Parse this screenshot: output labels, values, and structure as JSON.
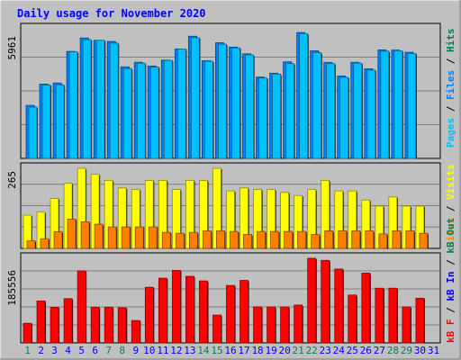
{
  "chart_data": {
    "type": "bar",
    "title": "Daily usage for November 2020",
    "days": [
      "1",
      "2",
      "3",
      "4",
      "5",
      "6",
      "7",
      "8",
      "9",
      "10",
      "11",
      "12",
      "13",
      "14",
      "15",
      "16",
      "17",
      "18",
      "19",
      "20",
      "21",
      "22",
      "23",
      "24",
      "25",
      "26",
      "27",
      "28",
      "29",
      "30",
      "31"
    ],
    "weekend_days": [
      "1",
      "7",
      "8",
      "14",
      "15",
      "21",
      "22",
      "28",
      "29"
    ],
    "panels": [
      {
        "id": "pages-files-hits",
        "max_label": "5961",
        "max": 5961,
        "series": [
          {
            "name": "Hits",
            "color": "#00805c",
            "values": []
          },
          {
            "name": "Files",
            "color": "#0080ff",
            "values": [
              2440,
              3420,
              3470,
              4920,
              5540,
              5430,
              5380,
              4210,
              4420,
              4250,
              4520,
              5030,
              5620,
              4490,
              5320,
              5120,
              4810,
              3740,
              3920,
              4440,
              5790,
              4950,
              4420,
              3790,
              4420,
              4120,
              4990,
              4980,
              4880,
              null,
              null
            ]
          },
          {
            "name": "Pages",
            "color": "#00c0ff",
            "values": [
              2360,
              3380,
              3380,
              4900,
              5460,
              5430,
              5300,
              4130,
              4380,
              4200,
              4510,
              5030,
              5550,
              4470,
              5250,
              5080,
              4760,
              3700,
              3880,
              4360,
              5740,
              4860,
              4360,
              3730,
              4380,
              4060,
              4930,
              4950,
              4830,
              null,
              null
            ]
          }
        ]
      },
      {
        "id": "visits-sites",
        "max_label": "265",
        "max": 265,
        "series": [
          {
            "name": "Visits",
            "color": "#ffff00",
            "values": [
              110,
              120,
              165,
              215,
              265,
              245,
              225,
              200,
              195,
              225,
              225,
              195,
              225,
              225,
              265,
              190,
              200,
              195,
              195,
              185,
              175,
              195,
              225,
              190,
              190,
              160,
              140,
              170,
              140,
              140,
              null
            ]
          },
          {
            "name": "Sites",
            "color": "#ff8000",
            "values": [
              25,
              32,
              55,
              97,
              88,
              80,
              71,
              71,
              71,
              71,
              53,
              50,
              53,
              58,
              58,
              56,
              46,
              56,
              56,
              56,
              56,
              46,
              58,
              58,
              58,
              58,
              48,
              58,
              58,
              50,
              null
            ]
          }
        ]
      },
      {
        "id": "kb-in-out-f",
        "max_label": "185556",
        "max": 185556,
        "series": [
          {
            "name": "KB Out",
            "color": "#00805c",
            "values": []
          },
          {
            "name": "KB In",
            "color": "#0000ff",
            "values": []
          },
          {
            "name": "KB F",
            "color": "#ff0000",
            "values": [
              43000,
              92000,
              78000,
              97000,
              158000,
              78000,
              78000,
              77000,
              49000,
              122000,
              142000,
              159000,
              146000,
              136000,
              61000,
              126000,
              137000,
              79000,
              79000,
              79000,
              83000,
              185556,
              181000,
              162000,
              105000,
              153000,
              120000,
              120000,
              79000,
              98000,
              null
            ]
          }
        ]
      }
    ],
    "legend": {
      "panel1": [
        {
          "text": "Pages",
          "color": "#00c0ff"
        },
        {
          "text": " / ",
          "color": "#000000"
        },
        {
          "text": "Files",
          "color": "#0080ff"
        },
        {
          "text": " / ",
          "color": "#000000"
        },
        {
          "text": "Hits",
          "color": "#00805c"
        }
      ],
      "panel2": [
        {
          "text": "Sites",
          "color": "#ff8000"
        },
        {
          "text": " / ",
          "color": "#000000"
        },
        {
          "text": "Visits",
          "color": "#ffff00"
        }
      ],
      "panel3": [
        {
          "text": "kB F",
          "color": "#ff0000"
        },
        {
          "text": " / ",
          "color": "#000000"
        },
        {
          "text": "kB In",
          "color": "#0000ff"
        },
        {
          "text": " / ",
          "color": "#000000"
        },
        {
          "text": "kB Out",
          "color": "#00805c"
        }
      ]
    },
    "colors": {
      "background": "#c0c0c0",
      "title": "#0000ff",
      "weekday_label": "#0000ff",
      "weekend_label": "#00805c"
    }
  }
}
